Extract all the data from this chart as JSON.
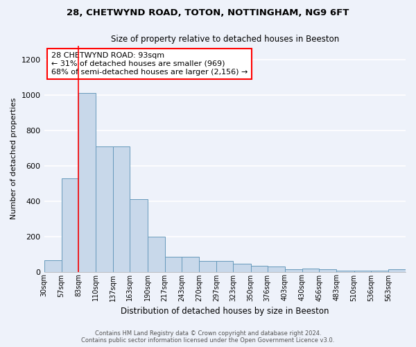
{
  "title_line1": "28, CHETWYND ROAD, TOTON, NOTTINGHAM, NG9 6FT",
  "title_line2": "Size of property relative to detached houses in Beeston",
  "xlabel": "Distribution of detached houses by size in Beeston",
  "ylabel": "Number of detached properties",
  "bin_labels": [
    "30sqm",
    "57sqm",
    "83sqm",
    "110sqm",
    "137sqm",
    "163sqm",
    "190sqm",
    "217sqm",
    "243sqm",
    "270sqm",
    "297sqm",
    "323sqm",
    "350sqm",
    "376sqm",
    "403sqm",
    "430sqm",
    "456sqm",
    "483sqm",
    "510sqm",
    "536sqm",
    "563sqm"
  ],
  "bin_edges": [
    30,
    57,
    83,
    110,
    137,
    163,
    190,
    217,
    243,
    270,
    297,
    323,
    350,
    376,
    403,
    430,
    456,
    483,
    510,
    536,
    563,
    590
  ],
  "bar_heights": [
    65,
    530,
    1010,
    710,
    710,
    410,
    200,
    85,
    85,
    60,
    60,
    45,
    35,
    30,
    15,
    17,
    14,
    5,
    5,
    5,
    15
  ],
  "bar_color": "#c8d8ea",
  "bar_edge_color": "#6699bb",
  "red_line_x": 83,
  "annotation_text": "28 CHETWYND ROAD: 93sqm\n← 31% of detached houses are smaller (969)\n68% of semi-detached houses are larger (2,156) →",
  "annotation_box_color": "white",
  "annotation_box_edge": "red",
  "ylim": [
    0,
    1280
  ],
  "yticks": [
    0,
    200,
    400,
    600,
    800,
    1000,
    1200
  ],
  "footer_line1": "Contains HM Land Registry data © Crown copyright and database right 2024.",
  "footer_line2": "Contains public sector information licensed under the Open Government Licence v3.0.",
  "bg_color": "#eef2fa",
  "grid_color": "#ffffff"
}
